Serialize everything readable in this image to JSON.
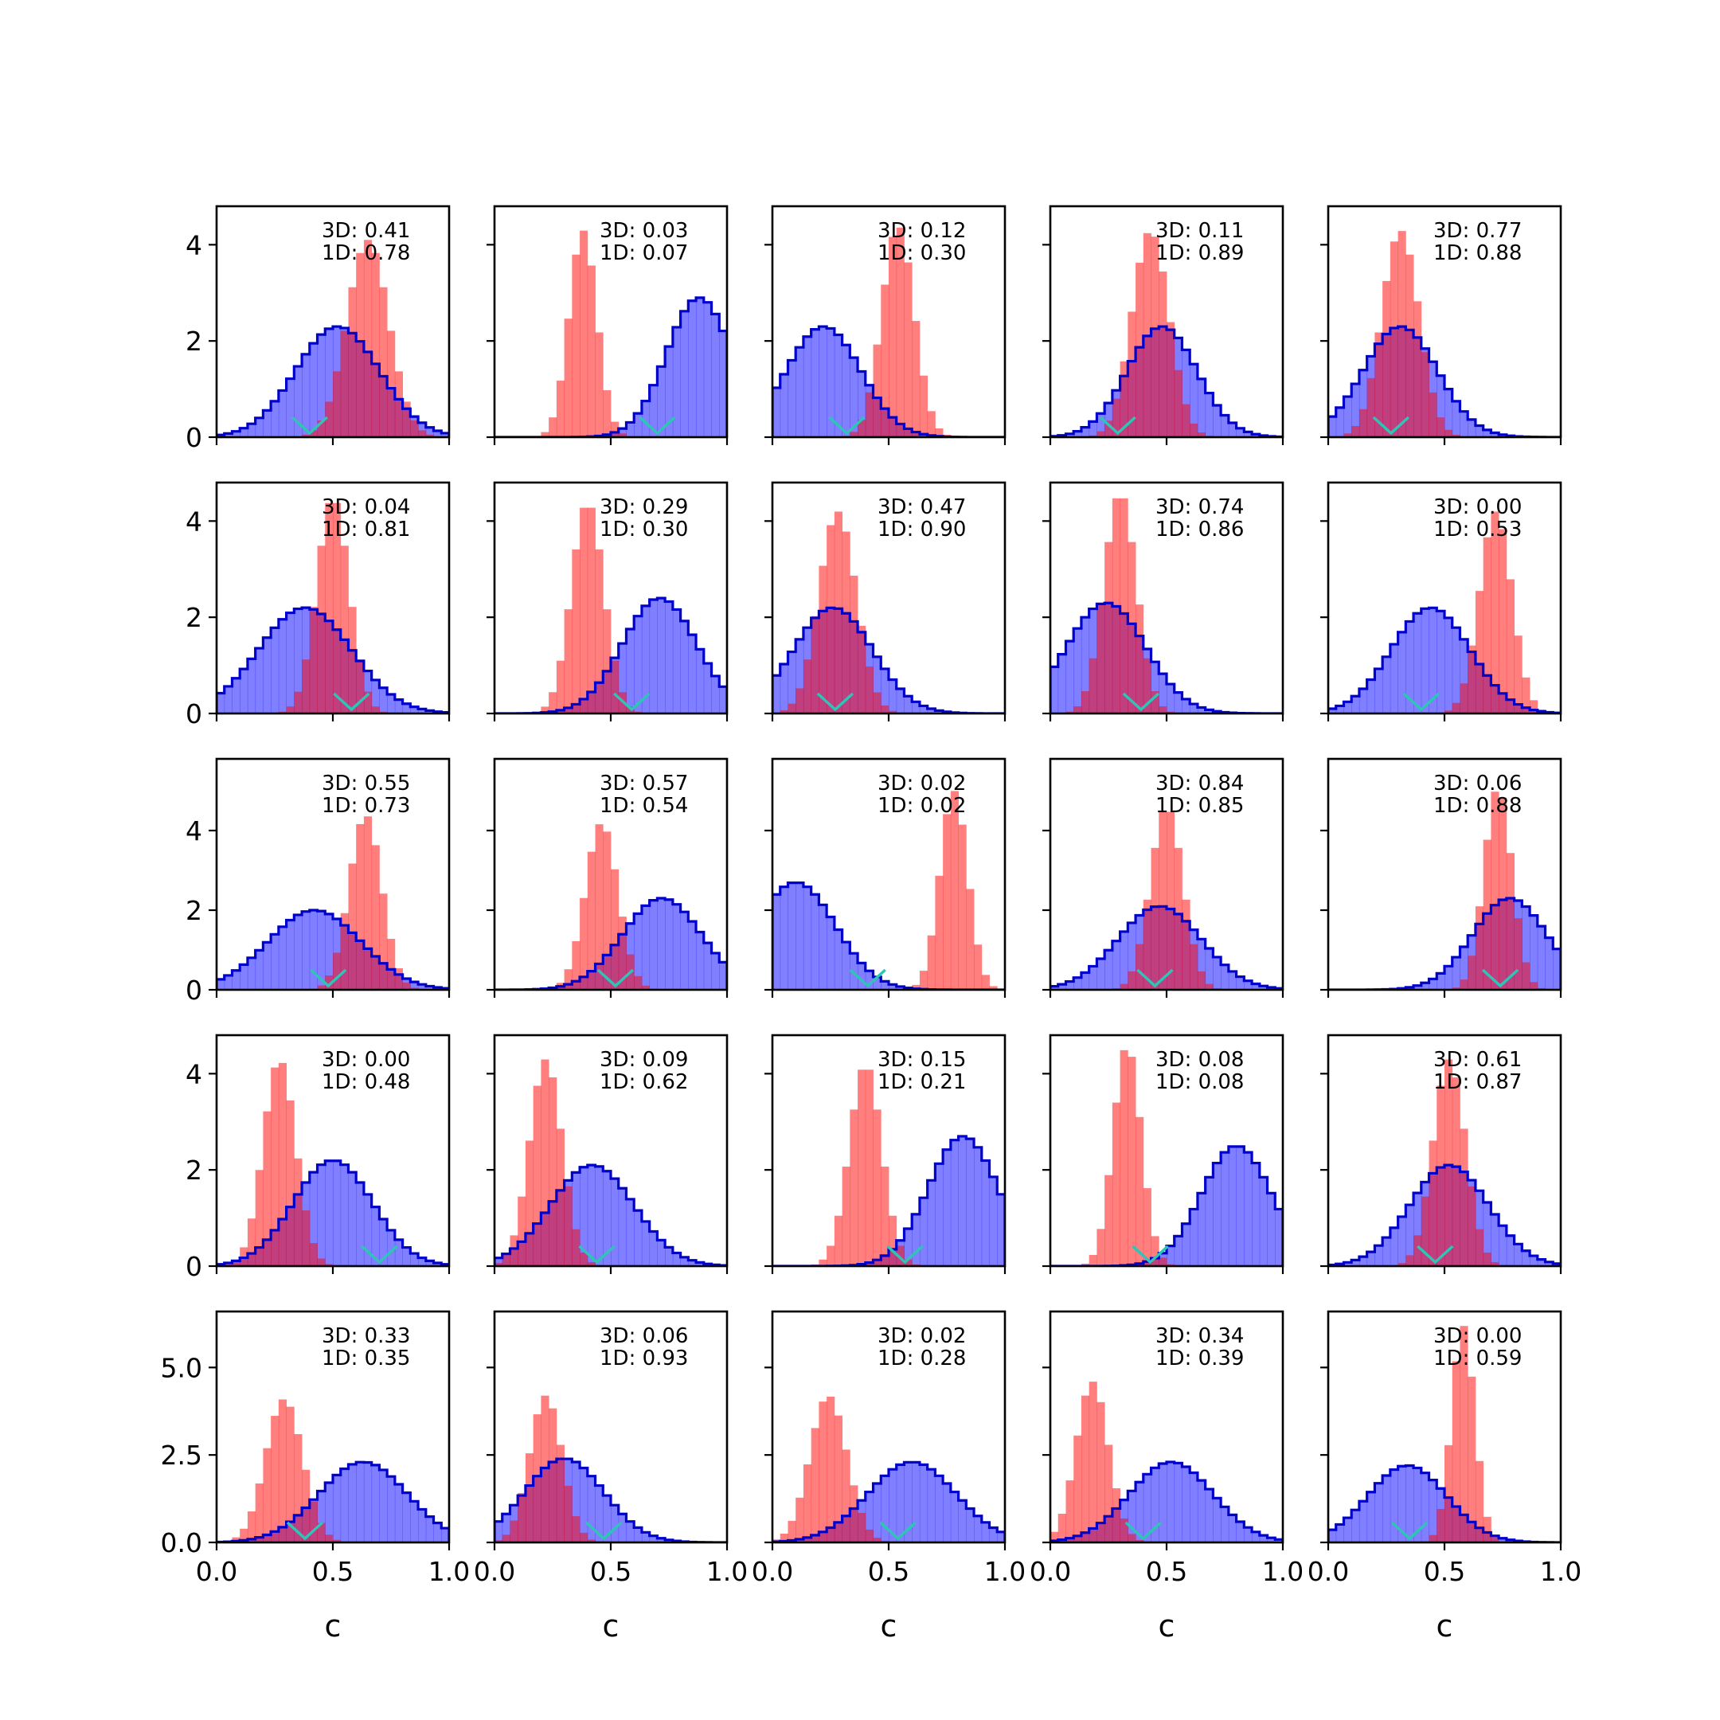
{
  "figure": {
    "rows": 5,
    "cols": 5,
    "xlabel": "c",
    "x_ticks": [
      0.0,
      0.5,
      1.0
    ],
    "x_tick_labels": [
      "0.0",
      "0.5",
      "1.0"
    ]
  },
  "colors": {
    "blue_fill": "#0000ff",
    "blue_edge": "#0000cc",
    "red_fill": "#ff0000",
    "marker": "#2ec4b6"
  },
  "row_y_axes": [
    {
      "ylim": [
        0,
        4.8
      ],
      "ticks": [
        0,
        2,
        4
      ],
      "labels": [
        "0",
        "2",
        "4"
      ]
    },
    {
      "ylim": [
        0,
        4.8
      ],
      "ticks": [
        0,
        2,
        4
      ],
      "labels": [
        "0",
        "2",
        "4"
      ]
    },
    {
      "ylim": [
        0,
        5.8
      ],
      "ticks": [
        0,
        2,
        4
      ],
      "labels": [
        "0",
        "2",
        "4"
      ]
    },
    {
      "ylim": [
        0,
        4.8
      ],
      "ticks": [
        0,
        2,
        4
      ],
      "labels": [
        "0",
        "2",
        "4"
      ]
    },
    {
      "ylim": [
        0,
        6.6
      ],
      "ticks": [
        0,
        2.5,
        5.0
      ],
      "labels": [
        "0.0",
        "2.5",
        "5.0"
      ]
    }
  ],
  "chart_data": [
    {
      "type": "area",
      "panel": "r1c1",
      "xlim": [
        0,
        1
      ],
      "annotation": [
        "3D: 0.41",
        "1D: 0.78"
      ],
      "blue": {
        "mean": 0.52,
        "sd": 0.18,
        "peak": 2.3
      },
      "red": {
        "mean": 0.65,
        "sd": 0.09,
        "peak": 4.1
      },
      "marker_x": 0.4
    },
    {
      "type": "area",
      "panel": "r1c2",
      "xlim": [
        0,
        1
      ],
      "annotation": [
        "3D: 0.03",
        "1D: 0.07"
      ],
      "blue": {
        "mean": 0.88,
        "sd": 0.14,
        "peak": 2.9
      },
      "red": {
        "mean": 0.38,
        "sd": 0.06,
        "peak": 4.3
      },
      "marker_x": 0.7
    },
    {
      "type": "area",
      "panel": "r1c3",
      "xlim": [
        0,
        1
      ],
      "annotation": [
        "3D: 0.12",
        "1D: 0.30"
      ],
      "blue": {
        "mean": 0.22,
        "sd": 0.16,
        "peak": 2.3
      },
      "red": {
        "mean": 0.54,
        "sd": 0.07,
        "peak": 4.4
      },
      "marker_x": 0.32
    },
    {
      "type": "area",
      "panel": "r1c4",
      "xlim": [
        0,
        1
      ],
      "annotation": [
        "3D: 0.11",
        "1D: 0.89"
      ],
      "blue": {
        "mean": 0.48,
        "sd": 0.15,
        "peak": 2.3
      },
      "red": {
        "mean": 0.43,
        "sd": 0.08,
        "peak": 4.3
      },
      "marker_x": 0.29
    },
    {
      "type": "area",
      "panel": "r1c5",
      "xlim": [
        0,
        1
      ],
      "annotation": [
        "3D: 0.77",
        "1D: 0.88"
      ],
      "blue": {
        "mean": 0.31,
        "sd": 0.16,
        "peak": 2.3
      },
      "red": {
        "mean": 0.31,
        "sd": 0.08,
        "peak": 4.3
      },
      "marker_x": 0.27
    },
    {
      "type": "area",
      "panel": "r2c1",
      "xlim": [
        0,
        1
      ],
      "annotation": [
        "3D: 0.04",
        "1D: 0.81"
      ],
      "blue": {
        "mean": 0.38,
        "sd": 0.2,
        "peak": 2.2
      },
      "red": {
        "mean": 0.5,
        "sd": 0.07,
        "peak": 4.5
      },
      "marker_x": 0.58
    },
    {
      "type": "area",
      "panel": "r2c2",
      "xlim": [
        0,
        1
      ],
      "annotation": [
        "3D: 0.29",
        "1D: 0.30"
      ],
      "blue": {
        "mean": 0.71,
        "sd": 0.16,
        "peak": 2.4
      },
      "red": {
        "mean": 0.4,
        "sd": 0.07,
        "peak": 4.4
      },
      "marker_x": 0.59
    },
    {
      "type": "area",
      "panel": "r2c3",
      "xlim": [
        0,
        1
      ],
      "annotation": [
        "3D: 0.47",
        "1D: 0.90"
      ],
      "blue": {
        "mean": 0.26,
        "sd": 0.17,
        "peak": 2.2
      },
      "red": {
        "mean": 0.28,
        "sd": 0.08,
        "peak": 4.2
      },
      "marker_x": 0.27
    },
    {
      "type": "area",
      "panel": "r2c4",
      "xlim": [
        0,
        1
      ],
      "annotation": [
        "3D: 0.74",
        "1D: 0.86"
      ],
      "blue": {
        "mean": 0.24,
        "sd": 0.17,
        "peak": 2.3
      },
      "red": {
        "mean": 0.3,
        "sd": 0.07,
        "peak": 4.6
      },
      "marker_x": 0.39
    },
    {
      "type": "area",
      "panel": "r2c5",
      "xlim": [
        0,
        1
      ],
      "annotation": [
        "3D: 0.00",
        "1D: 0.53"
      ],
      "blue": {
        "mean": 0.44,
        "sd": 0.17,
        "peak": 2.2
      },
      "red": {
        "mean": 0.72,
        "sd": 0.07,
        "peak": 4.2
      },
      "marker_x": 0.4
    },
    {
      "type": "area",
      "panel": "r3c1",
      "xlim": [
        0,
        1
      ],
      "annotation": [
        "3D: 0.55",
        "1D: 0.73"
      ],
      "blue": {
        "mean": 0.42,
        "sd": 0.2,
        "peak": 2.0
      },
      "red": {
        "mean": 0.64,
        "sd": 0.07,
        "peak": 4.4
      },
      "marker_x": 0.48
    },
    {
      "type": "area",
      "panel": "r3c2",
      "xlim": [
        0,
        1
      ],
      "annotation": [
        "3D: 0.57",
        "1D: 0.54"
      ],
      "blue": {
        "mean": 0.72,
        "sd": 0.17,
        "peak": 2.3
      },
      "red": {
        "mean": 0.46,
        "sd": 0.07,
        "peak": 4.2
      },
      "marker_x": 0.52
    },
    {
      "type": "area",
      "panel": "r3c3",
      "xlim": [
        0,
        1
      ],
      "annotation": [
        "3D: 0.02",
        "1D: 0.02"
      ],
      "blue": {
        "mean": 0.1,
        "sd": 0.17,
        "peak": 2.7
      },
      "red": {
        "mean": 0.78,
        "sd": 0.06,
        "peak": 5.0
      },
      "marker_x": 0.41
    },
    {
      "type": "area",
      "panel": "r3c4",
      "xlim": [
        0,
        1
      ],
      "annotation": [
        "3D: 0.84",
        "1D: 0.85"
      ],
      "blue": {
        "mean": 0.47,
        "sd": 0.18,
        "peak": 2.1
      },
      "red": {
        "mean": 0.5,
        "sd": 0.07,
        "peak": 4.6
      },
      "marker_x": 0.45
    },
    {
      "type": "area",
      "panel": "r3c5",
      "xlim": [
        0,
        1
      ],
      "annotation": [
        "3D: 0.06",
        "1D: 0.88"
      ],
      "blue": {
        "mean": 0.78,
        "sd": 0.16,
        "peak": 2.3
      },
      "red": {
        "mean": 0.73,
        "sd": 0.06,
        "peak": 5.1
      },
      "marker_x": 0.74
    },
    {
      "type": "area",
      "panel": "r4c1",
      "xlim": [
        0,
        1
      ],
      "annotation": [
        "3D: 0.00",
        "1D: 0.48"
      ],
      "blue": {
        "mean": 0.5,
        "sd": 0.17,
        "peak": 2.2
      },
      "red": {
        "mean": 0.27,
        "sd": 0.07,
        "peak": 4.3
      },
      "marker_x": 0.7
    },
    {
      "type": "area",
      "panel": "r4c2",
      "xlim": [
        0,
        1
      ],
      "annotation": [
        "3D: 0.09",
        "1D: 0.62"
      ],
      "blue": {
        "mean": 0.42,
        "sd": 0.18,
        "peak": 2.1
      },
      "red": {
        "mean": 0.22,
        "sd": 0.07,
        "peak": 4.3
      },
      "marker_x": 0.44
    },
    {
      "type": "area",
      "panel": "r4c3",
      "xlim": [
        0,
        1
      ],
      "annotation": [
        "3D: 0.15",
        "1D: 0.21"
      ],
      "blue": {
        "mean": 0.82,
        "sd": 0.15,
        "peak": 2.7
      },
      "red": {
        "mean": 0.4,
        "sd": 0.07,
        "peak": 4.2
      },
      "marker_x": 0.57
    },
    {
      "type": "area",
      "panel": "r4c4",
      "xlim": [
        0,
        1
      ],
      "annotation": [
        "3D: 0.08",
        "1D: 0.08"
      ],
      "blue": {
        "mean": 0.8,
        "sd": 0.15,
        "peak": 2.5
      },
      "red": {
        "mean": 0.33,
        "sd": 0.06,
        "peak": 4.6
      },
      "marker_x": 0.43
    },
    {
      "type": "area",
      "panel": "r4c5",
      "xlim": [
        0,
        1
      ],
      "annotation": [
        "3D: 0.61",
        "1D: 0.87"
      ],
      "blue": {
        "mean": 0.52,
        "sd": 0.17,
        "peak": 2.1
      },
      "red": {
        "mean": 0.52,
        "sd": 0.07,
        "peak": 4.3
      },
      "marker_x": 0.46
    },
    {
      "type": "area",
      "panel": "r5c1",
      "xlim": [
        0,
        1
      ],
      "annotation": [
        "3D: 0.33",
        "1D: 0.35"
      ],
      "blue": {
        "mean": 0.63,
        "sd": 0.19,
        "peak": 2.3
      },
      "red": {
        "mean": 0.29,
        "sd": 0.08,
        "peak": 4.1
      },
      "marker_x": 0.38
    },
    {
      "type": "area",
      "panel": "r5c2",
      "xlim": [
        0,
        1
      ],
      "annotation": [
        "3D: 0.06",
        "1D: 0.93"
      ],
      "blue": {
        "mean": 0.3,
        "sd": 0.17,
        "peak": 2.4
      },
      "red": {
        "mean": 0.22,
        "sd": 0.07,
        "peak": 4.2
      },
      "marker_x": 0.47
    },
    {
      "type": "area",
      "panel": "r5c3",
      "xlim": [
        0,
        1
      ],
      "annotation": [
        "3D: 0.02",
        "1D: 0.28"
      ],
      "blue": {
        "mean": 0.6,
        "sd": 0.19,
        "peak": 2.3
      },
      "red": {
        "mean": 0.24,
        "sd": 0.08,
        "peak": 4.2
      },
      "marker_x": 0.54
    },
    {
      "type": "area",
      "panel": "r5c4",
      "xlim": [
        0,
        1
      ],
      "annotation": [
        "3D: 0.34",
        "1D: 0.39"
      ],
      "blue": {
        "mean": 0.52,
        "sd": 0.18,
        "peak": 2.3
      },
      "red": {
        "mean": 0.18,
        "sd": 0.07,
        "peak": 4.6
      },
      "marker_x": 0.4
    },
    {
      "type": "area",
      "panel": "r5c5",
      "xlim": [
        0,
        1
      ],
      "annotation": [
        "3D: 0.00",
        "1D: 0.59"
      ],
      "blue": {
        "mean": 0.34,
        "sd": 0.17,
        "peak": 2.2
      },
      "red": {
        "mean": 0.58,
        "sd": 0.05,
        "peak": 6.2
      },
      "marker_x": 0.35
    }
  ]
}
